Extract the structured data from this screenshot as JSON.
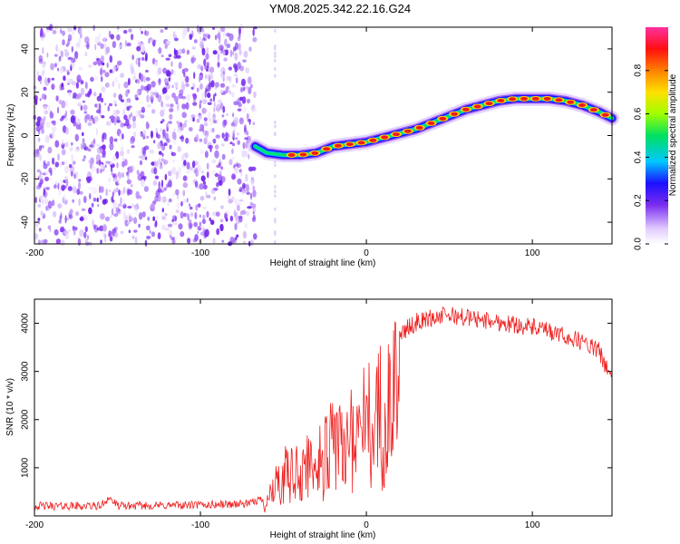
{
  "figure_title": "YM08.2025.342.22.16.G24",
  "colors": {
    "snr_line": "#ee2020",
    "noise_purple": "#7a2cf0",
    "track_ridge": "#ee1c1c"
  },
  "chart_data": [
    {
      "type": "heatmap",
      "title": "YM08.2025.342.22.16.G24",
      "xlabel": "Height of straight line (km)",
      "ylabel": "Frequency (Hz)",
      "xlim": [
        -200,
        148
      ],
      "ylim": [
        -50,
        50
      ],
      "x_ticks": [
        -200,
        -100,
        0,
        100
      ],
      "y_ticks": [
        -40,
        -20,
        0,
        20,
        40
      ],
      "colorbar": {
        "label": "Normalized spectral amplitude",
        "range": [
          0,
          1
        ],
        "ticks": [
          0.0,
          0.2,
          0.4,
          0.6,
          0.8
        ]
      },
      "noise_region_x": [
        -200,
        -67
      ],
      "frequency_track": {
        "x": [
          -67,
          -60,
          -50,
          -40,
          -30,
          -20,
          -10,
          0,
          10,
          20,
          30,
          40,
          50,
          60,
          70,
          80,
          90,
          100,
          110,
          120,
          130,
          140,
          148
        ],
        "y": [
          -5,
          -8,
          -9,
          -9,
          -8,
          -5,
          -4,
          -3,
          -1,
          1,
          3,
          6,
          9,
          12,
          14,
          16,
          17,
          17,
          17,
          16,
          14,
          11,
          8
        ]
      }
    },
    {
      "type": "line",
      "xlabel": "Height of straight line (km)",
      "ylabel": "SNR (10 * v/v)",
      "xlim": [
        -200,
        148
      ],
      "ylim": [
        0,
        4500
      ],
      "x_ticks": [
        -200,
        -100,
        0,
        100
      ],
      "y_ticks": [
        1000,
        2000,
        3000,
        4000
      ],
      "envelope": {
        "x": [
          -200,
          -160,
          -155,
          -150,
          -100,
          -70,
          -60,
          -55,
          -50,
          -40,
          -30,
          -20,
          -10,
          0,
          10,
          20,
          30,
          40,
          50,
          60,
          70,
          80,
          90,
          100,
          110,
          120,
          130,
          140,
          148
        ],
        "y": [
          200,
          200,
          380,
          200,
          220,
          250,
          400,
          900,
          1300,
          1500,
          1800,
          2200,
          2600,
          3000,
          3400,
          3800,
          4050,
          4150,
          4200,
          4150,
          4100,
          4050,
          4000,
          3950,
          3850,
          3750,
          3650,
          3450,
          2900
        ]
      }
    }
  ]
}
